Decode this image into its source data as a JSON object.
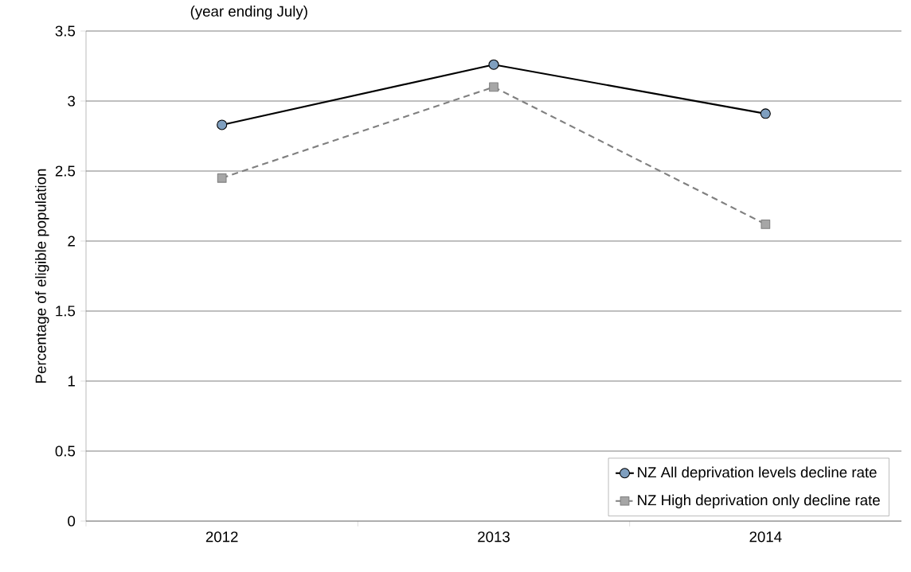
{
  "chart_data": {
    "type": "line",
    "title": "(year ending July)",
    "ylabel": "Percentage of eligible population",
    "categories": [
      "2012",
      "2013",
      "2014"
    ],
    "series": [
      {
        "name": "NZ All deprivation levels decline rate",
        "color": "#000000",
        "marker": "circle",
        "line_style": "solid",
        "values": [
          2.83,
          3.26,
          2.91
        ]
      },
      {
        "name": "NZ High deprivation only decline rate",
        "color": "#808080",
        "marker": "square",
        "line_style": "dashed",
        "values": [
          2.45,
          3.1,
          2.12
        ]
      }
    ],
    "ylim": [
      0,
      3.5
    ],
    "yticks": [
      0,
      0.5,
      1,
      1.5,
      2,
      2.5,
      3,
      3.5
    ],
    "grid": "y",
    "legend": "bottom right"
  }
}
